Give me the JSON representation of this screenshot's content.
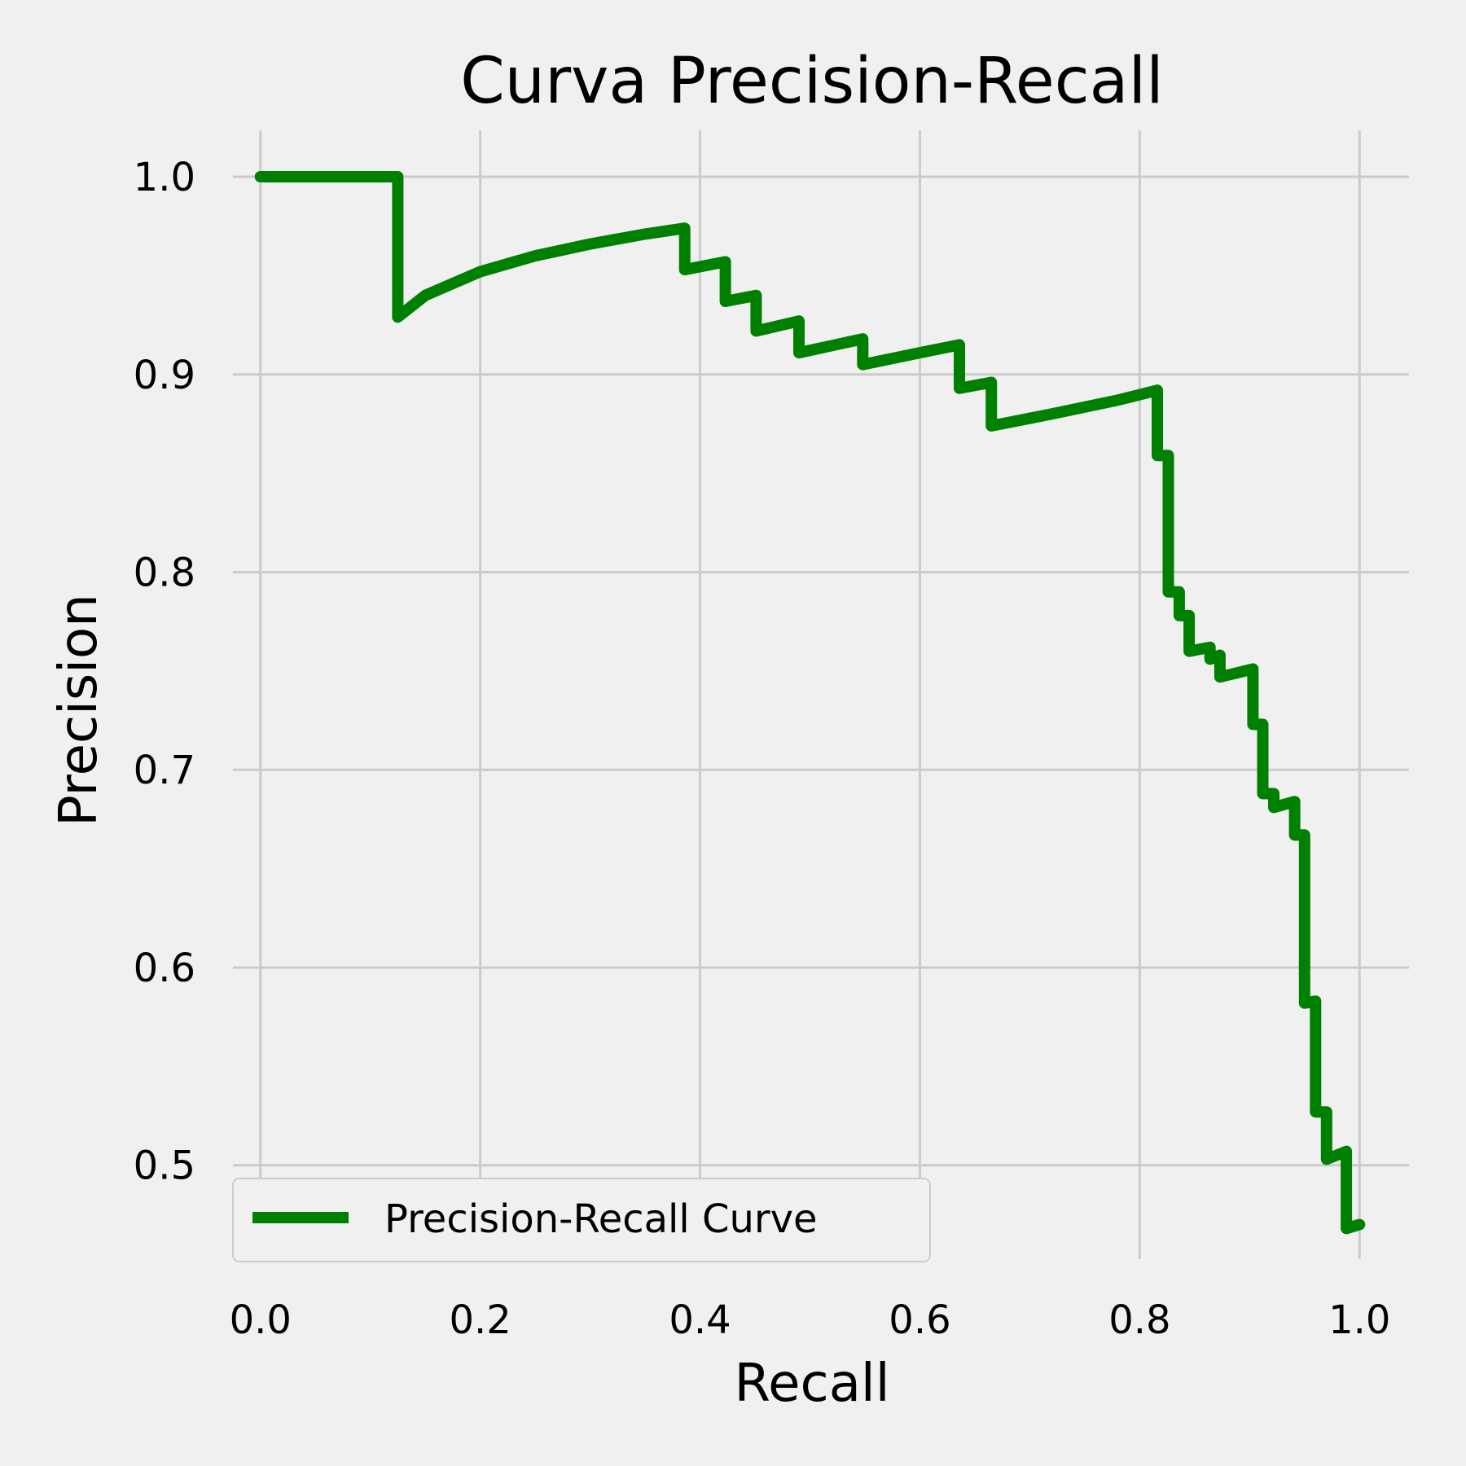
{
  "chart_data": {
    "type": "line",
    "title": "Curva Precision-Recall",
    "xlabel": "Recall",
    "ylabel": "Precision",
    "xlim": [
      -0.025,
      1.045
    ],
    "ylim": [
      0.4525,
      1.0235
    ],
    "xticks": [
      0.0,
      0.2,
      0.4,
      0.6,
      0.8,
      1.0
    ],
    "xtick_labels": [
      "0.0",
      "0.2",
      "0.4",
      "0.6",
      "0.8",
      "1.0"
    ],
    "yticks": [
      0.5,
      0.6,
      0.7,
      0.8,
      0.9,
      1.0
    ],
    "ytick_labels": [
      "0.5",
      "0.6",
      "0.7",
      "0.8",
      "0.9",
      "1.0"
    ],
    "grid": true,
    "legend_position": "bottom-left",
    "series": [
      {
        "name": "Precision-Recall Curve",
        "color": "#008000",
        "points": [
          [
            0.0,
            1.0
          ],
          [
            0.125,
            1.0
          ],
          [
            0.125,
            0.929
          ],
          [
            0.15,
            0.94
          ],
          [
            0.2,
            0.952
          ],
          [
            0.25,
            0.96
          ],
          [
            0.3,
            0.966
          ],
          [
            0.35,
            0.971
          ],
          [
            0.386,
            0.974
          ],
          [
            0.386,
            0.953
          ],
          [
            0.423,
            0.957
          ],
          [
            0.423,
            0.937
          ],
          [
            0.451,
            0.94
          ],
          [
            0.451,
            0.922
          ],
          [
            0.49,
            0.927
          ],
          [
            0.49,
            0.911
          ],
          [
            0.548,
            0.918
          ],
          [
            0.548,
            0.905
          ],
          [
            0.6,
            0.911
          ],
          [
            0.636,
            0.915
          ],
          [
            0.636,
            0.893
          ],
          [
            0.665,
            0.896
          ],
          [
            0.665,
            0.874
          ],
          [
            0.72,
            0.88
          ],
          [
            0.78,
            0.887
          ],
          [
            0.816,
            0.892
          ],
          [
            0.816,
            0.859
          ],
          [
            0.826,
            0.859
          ],
          [
            0.826,
            0.79
          ],
          [
            0.836,
            0.79
          ],
          [
            0.836,
            0.778
          ],
          [
            0.845,
            0.778
          ],
          [
            0.845,
            0.76
          ],
          [
            0.864,
            0.762
          ],
          [
            0.864,
            0.756
          ],
          [
            0.873,
            0.758
          ],
          [
            0.873,
            0.747
          ],
          [
            0.903,
            0.751
          ],
          [
            0.903,
            0.723
          ],
          [
            0.912,
            0.723
          ],
          [
            0.912,
            0.688
          ],
          [
            0.922,
            0.688
          ],
          [
            0.922,
            0.681
          ],
          [
            0.941,
            0.684
          ],
          [
            0.941,
            0.667
          ],
          [
            0.95,
            0.667
          ],
          [
            0.95,
            0.582
          ],
          [
            0.96,
            0.583
          ],
          [
            0.96,
            0.527
          ],
          [
            0.97,
            0.527
          ],
          [
            0.97,
            0.503
          ],
          [
            0.988,
            0.507
          ],
          [
            0.988,
            0.468
          ],
          [
            1.0,
            0.47
          ]
        ]
      }
    ]
  }
}
